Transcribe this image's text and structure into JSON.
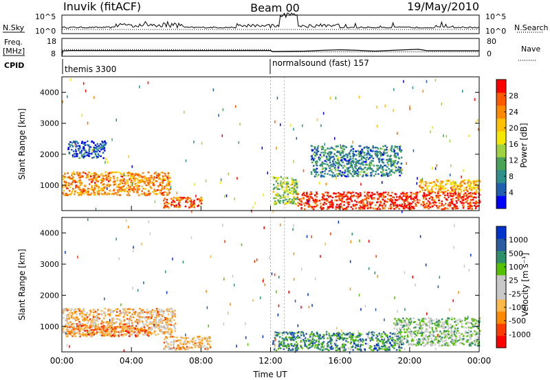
{
  "header": {
    "station": "Inuvik (fitACF)",
    "beam": "Beam 00",
    "date": "19/May/2010"
  },
  "strip_labels": {
    "nsky": "N.Sky",
    "freq_line1": "Freq.",
    "freq_line2": "[MHz]",
    "cpid": "CPID",
    "nsearch": "N.Search",
    "nave": "Nave"
  },
  "strip_ticks": {
    "nsky_top": "10^5",
    "nsky_bottom": "10^0",
    "nsearch_top": "10^5",
    "nsearch_bottom": "10^0",
    "freq_top": "18",
    "freq_bottom": "8",
    "nave_top": "80",
    "nave_bottom": "0"
  },
  "cpid_labels": [
    "themis 3300",
    "normalsound (fast) 157"
  ],
  "colors": {
    "power_scale": [
      "#0000ff",
      "#1f5fae",
      "#2f8f8a",
      "#4aa257",
      "#9fd240",
      "#f5e800",
      "#ffc000",
      "#ff8a00",
      "#ff5a00",
      "#ff0000"
    ],
    "velocity_scale": [
      "#ff0000",
      "#ff3c00",
      "#ff8a00",
      "#ffb84a",
      "#c8c8c8",
      "#c8c8c8",
      "#55c000",
      "#2f8f6a",
      "#2a5aa0",
      "#0033cc"
    ]
  },
  "chart_data": [
    {
      "type": "line",
      "title": "",
      "series": [
        {
          "name": "N.Sky",
          "style": "solid",
          "note": "noise level, log scale 10^0 to 10^5"
        },
        {
          "name": "N.Search",
          "style": "dotted"
        }
      ],
      "x_range_hours": [
        0,
        24
      ],
      "ylim": [
        "10^0",
        "10^5"
      ]
    },
    {
      "type": "line",
      "series": [
        {
          "name": "Freq.",
          "style": "solid",
          "unit": "MHz",
          "ylim": [
            8,
            18
          ],
          "x": [
            0,
            0.05,
            0.5,
            12,
            12.1,
            14,
            15,
            16,
            17,
            18,
            19,
            20.5,
            21,
            24
          ],
          "y": [
            8,
            11,
            11.2,
            11.2,
            10.6,
            10.9,
            11.3,
            11.6,
            11.3,
            10.9,
            11.3,
            11.9,
            11.1,
            11.1
          ]
        },
        {
          "name": "Nave",
          "style": "dotted",
          "ylim": [
            0,
            80
          ],
          "x": [
            0,
            12,
            12.1,
            24
          ],
          "y": [
            30,
            30,
            20,
            20
          ]
        }
      ]
    },
    {
      "type": "heatmap",
      "quantity": "Power",
      "unit": "dB",
      "xlabel": "",
      "ylabel": "Slant Range [km]",
      "x_range_hours": [
        0,
        24
      ],
      "ylim": [
        180,
        4500
      ],
      "yticks": [
        1000,
        2000,
        3000,
        4000
      ],
      "colorbar": {
        "label": "Power [dB]",
        "ticks": [
          4,
          8,
          12,
          16,
          20,
          24,
          28
        ]
      },
      "regions": [
        {
          "t0": 0,
          "t1": 6.2,
          "r0": 700,
          "r1": 1450,
          "level": 0.75
        },
        {
          "t0": 0.3,
          "t1": 2.5,
          "r0": 1900,
          "r1": 2450,
          "level": 0.15
        },
        {
          "t0": 5.8,
          "t1": 8.0,
          "r0": 300,
          "r1": 650,
          "level": 0.85
        },
        {
          "t0": 12.1,
          "t1": 13.5,
          "r0": 400,
          "r1": 1300,
          "level": 0.45
        },
        {
          "t0": 13.5,
          "t1": 24,
          "r0": 250,
          "r1": 800,
          "level": 0.92
        },
        {
          "t0": 20.5,
          "t1": 24,
          "r0": 800,
          "r1": 1200,
          "level": 0.7
        },
        {
          "t0": 14.3,
          "t1": 19.5,
          "r0": 1300,
          "r1": 2300,
          "level": 0.25
        }
      ]
    },
    {
      "type": "heatmap",
      "quantity": "Velocity",
      "unit": "m s^-1",
      "xlabel": "Time UT",
      "ylabel": "Slant Range [km]",
      "x_range_hours": [
        0,
        24
      ],
      "ylim": [
        180,
        4500
      ],
      "yticks": [
        1000,
        2000,
        3000,
        4000
      ],
      "xticks": [
        "00:00",
        "04:00",
        "08:00",
        "12:00",
        "16:00",
        "20:00",
        "00:00"
      ],
      "colorbar": {
        "label": "Velocity [m s-1]",
        "ticks": [
          -1000,
          -500,
          -100,
          -25,
          25,
          100,
          500,
          1000
        ]
      },
      "regions": [
        {
          "t0": 0,
          "t1": 6.5,
          "r0": 750,
          "r1": 1600,
          "level": 0.35
        },
        {
          "t0": 0.2,
          "t1": 5.0,
          "r0": 700,
          "r1": 1050,
          "level": 0.25
        },
        {
          "t0": 5.8,
          "t1": 8.5,
          "r0": 250,
          "r1": 700,
          "level": 0.35
        },
        {
          "t0": 12.1,
          "t1": 19.5,
          "r0": 250,
          "r1": 850,
          "level": 0.75
        },
        {
          "t0": 19.0,
          "t1": 24,
          "r0": 400,
          "r1": 1300,
          "level": 0.6
        }
      ]
    }
  ]
}
